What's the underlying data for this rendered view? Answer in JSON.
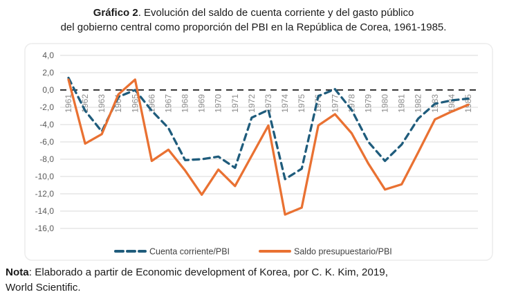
{
  "title": {
    "bold": "Gráfico 2",
    "line1_rest": ". Evolución del saldo de cuenta corriente y del gasto público",
    "line2": "del gobierno central como proporción del PBI en la República de Corea, 1961-1985."
  },
  "note": {
    "bold": "Nota",
    "rest_line1": ": Elaborado a partir de Economic development of Korea, por C. K. Kim, 2019,",
    "line2": "World Scientific."
  },
  "chart_data": {
    "type": "line",
    "x": [
      1961,
      1962,
      1963,
      1964,
      1965,
      1966,
      1967,
      1968,
      1969,
      1970,
      1971,
      1972,
      1973,
      1974,
      1975,
      1976,
      1977,
      1978,
      1979,
      1980,
      1981,
      1982,
      1983,
      1984,
      1985
    ],
    "series": [
      {
        "name": "Cuenta corriente/PBI",
        "style": "dashed",
        "color": "#1f5c7c",
        "values": [
          1.4,
          -2.4,
          -4.8,
          -0.8,
          0.0,
          -2.4,
          -4.4,
          -8.1,
          -8.0,
          -7.7,
          -9.0,
          -3.2,
          -2.3,
          -10.3,
          -9.1,
          -0.7,
          0.1,
          -2.3,
          -6.0,
          -8.2,
          -6.3,
          -3.3,
          -1.6,
          -1.2,
          -1.0
        ]
      },
      {
        "name": "Saldo presupuestario/PBI",
        "style": "solid",
        "color": "#e97132",
        "values": [
          1.2,
          -6.2,
          -5.1,
          -0.5,
          1.2,
          -8.2,
          -6.9,
          -9.3,
          -12.1,
          -9.2,
          -11.1,
          -7.6,
          -4.1,
          -14.4,
          -13.6,
          -4.1,
          -2.8,
          -5.0,
          -8.5,
          -11.5,
          -10.9,
          -7.2,
          -3.4,
          -2.5,
          -1.7
        ]
      }
    ],
    "ylabel": "",
    "xlabel": "",
    "ylim": [
      -16,
      4
    ],
    "y_ticks": [
      4,
      2,
      0,
      -2,
      -4,
      -6,
      -8,
      -10,
      -12,
      -14,
      -16
    ],
    "y_tick_labels": [
      "4,0",
      "2,0",
      "0,0",
      "-2,0",
      "-4,0",
      "-6,0",
      "-8,0",
      "-10,0",
      "-12,0",
      "-14,0",
      "-16,0"
    ],
    "grid": true,
    "zero_line": "dashed-black",
    "legend_position": "bottom",
    "x_label_rotation": -90,
    "colors": {
      "gridline": "#d9d9d9",
      "zero_line": "#1a1a1a",
      "y_tick_text": "#595959",
      "x_tick_text": "#8c8c8c",
      "legend_text": "#3f3f3f",
      "frame": "#ececec"
    }
  }
}
